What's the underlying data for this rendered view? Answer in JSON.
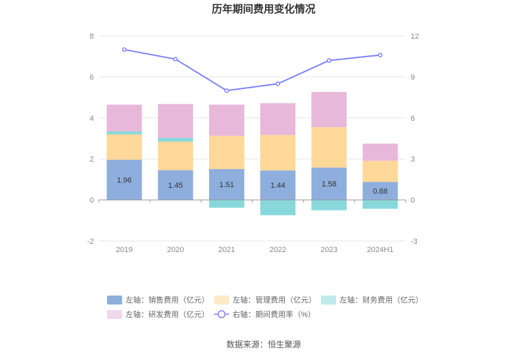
{
  "chart_data": {
    "type": "bar",
    "title": "历年期间费用变化情况",
    "categories": [
      "2019",
      "2020",
      "2021",
      "2022",
      "2023",
      "2024H1"
    ],
    "left_axis": {
      "ylim": [
        -2,
        8
      ],
      "ticks": [
        "-2",
        "0",
        "2",
        "4",
        "6",
        "8"
      ]
    },
    "right_axis": {
      "ylim": [
        -3,
        12
      ],
      "ticks": [
        "-3",
        "0",
        "3",
        "6",
        "9",
        "12"
      ]
    },
    "series": [
      {
        "name": "左轴：销售费用（亿元）",
        "type": "bar",
        "axis": "left",
        "color": "#8eaedd",
        "values": [
          1.96,
          1.45,
          1.51,
          1.44,
          1.58,
          0.88
        ],
        "labels": [
          "1.96",
          "1.45",
          "1.51",
          "1.44",
          "1.58",
          "0.88"
        ]
      },
      {
        "name": "左轴：管理费用（亿元）",
        "type": "bar",
        "axis": "left",
        "color": "#fdd899",
        "values": [
          1.24,
          1.4,
          1.62,
          1.73,
          1.97,
          1.03
        ]
      },
      {
        "name": "左轴：财务费用（亿元）",
        "type": "bar",
        "axis": "left",
        "color": "#88d8db",
        "values": [
          0.15,
          0.18,
          -0.38,
          -0.74,
          -0.5,
          -0.43
        ]
      },
      {
        "name": "左轴：研发费用（亿元）",
        "type": "bar",
        "axis": "left",
        "color": "#e8b8da",
        "values": [
          1.3,
          1.65,
          1.52,
          1.55,
          1.72,
          0.84
        ]
      },
      {
        "name": "右轴：期间费用率（%）",
        "type": "line",
        "axis": "right",
        "color": "#7f83f7",
        "values": [
          11.0,
          10.3,
          8.0,
          8.5,
          10.2,
          10.6
        ]
      }
    ]
  },
  "source": "数据来源：恒生聚源"
}
